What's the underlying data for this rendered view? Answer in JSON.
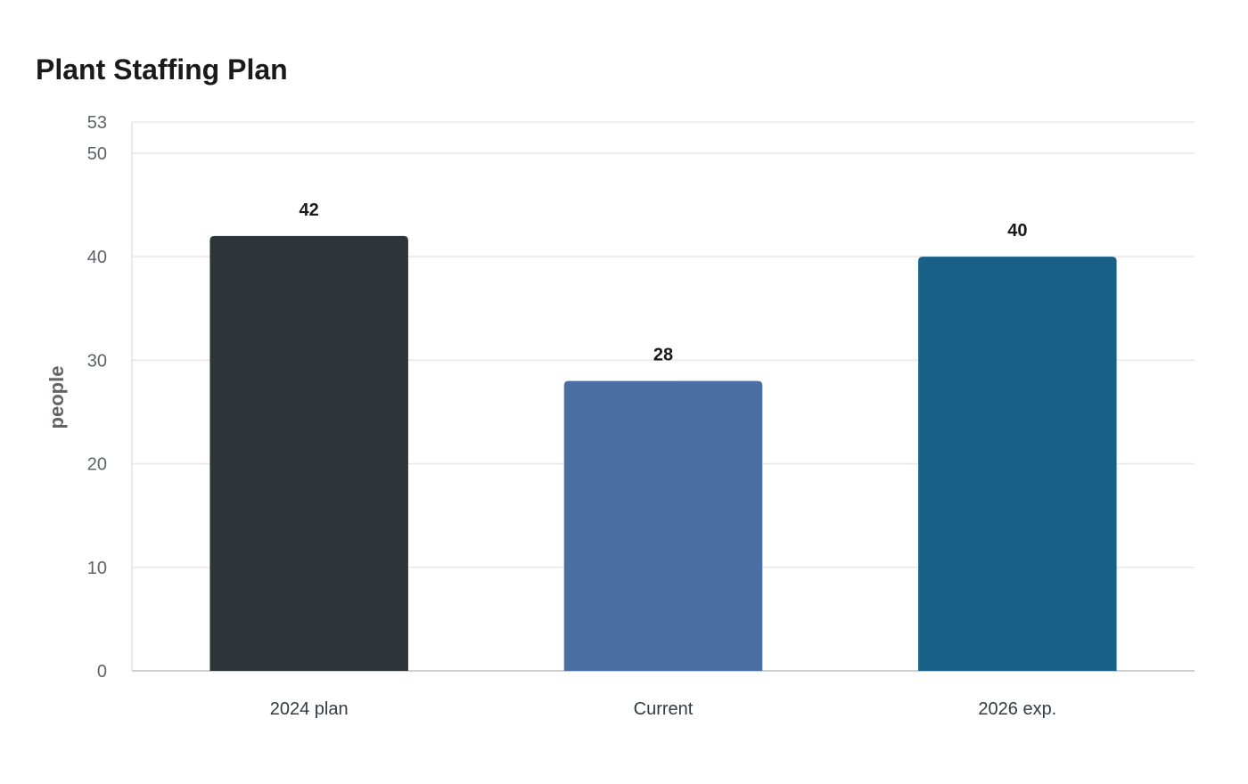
{
  "chart_data": {
    "type": "bar",
    "title": "Plant Staffing Plan",
    "xlabel": "",
    "ylabel": "people",
    "categories": [
      "2024 plan",
      "Current",
      "2026 exp."
    ],
    "values": [
      42,
      28,
      40
    ],
    "colors": [
      "#2e3538",
      "#4b6fa3",
      "#186088"
    ],
    "ylim": [
      0,
      53
    ],
    "yticks": [
      0,
      10,
      20,
      30,
      40,
      50,
      53
    ],
    "grid": true,
    "legend": "none",
    "data_labels": true
  }
}
